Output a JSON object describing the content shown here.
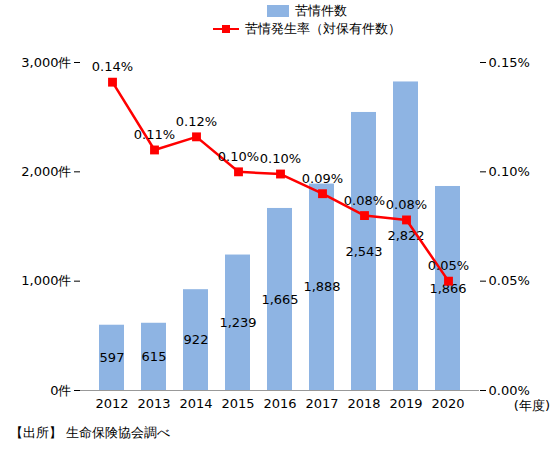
{
  "chart_data": {
    "type": "bar",
    "categories": [
      "2012",
      "2013",
      "2014",
      "2015",
      "2016",
      "2017",
      "2018",
      "2019",
      "2020"
    ],
    "xlabel": "(年度)",
    "source": "【出所】 生命保険協会調べ",
    "series": [
      {
        "name": "苦情件数",
        "type": "bar",
        "color": "#8EB4E3",
        "values": [
          597,
          615,
          922,
          1239,
          1665,
          1888,
          2543,
          2822,
          1866
        ],
        "value_labels": [
          "597",
          "615",
          "922",
          "1,239",
          "1,665",
          "1,888",
          "2,543",
          "2,822",
          "1,866"
        ]
      },
      {
        "name": "苦情発生率（対保有件数）",
        "type": "line",
        "axis": "y2",
        "color": "#FF0000",
        "marker": "square",
        "values": [
          0.141,
          0.11,
          0.116,
          0.1,
          0.099,
          0.09,
          0.08,
          0.078,
          0.05
        ],
        "value_labels": [
          "0.14%",
          "0.11%",
          "0.12%",
          "0.10%",
          "0.10%",
          "0.09%",
          "0.08%",
          "0.08%",
          "0.05%"
        ]
      }
    ],
    "ylim": [
      0,
      3000
    ],
    "yticks": [
      {
        "value": 0,
        "label": "0件"
      },
      {
        "value": 1000,
        "label": "1,000件"
      },
      {
        "value": 2000,
        "label": "2,000件"
      },
      {
        "value": 3000,
        "label": "3,000件"
      }
    ],
    "y2lim": [
      0,
      0.15
    ],
    "y2ticks": [
      {
        "value": 0,
        "label": "0.00%"
      },
      {
        "value": 0.05,
        "label": "0.05%"
      },
      {
        "value": 0.1,
        "label": "0.10%"
      },
      {
        "value": 0.15,
        "label": "0.15%"
      }
    ],
    "data_labels": true,
    "grid": false,
    "legend": "top"
  }
}
